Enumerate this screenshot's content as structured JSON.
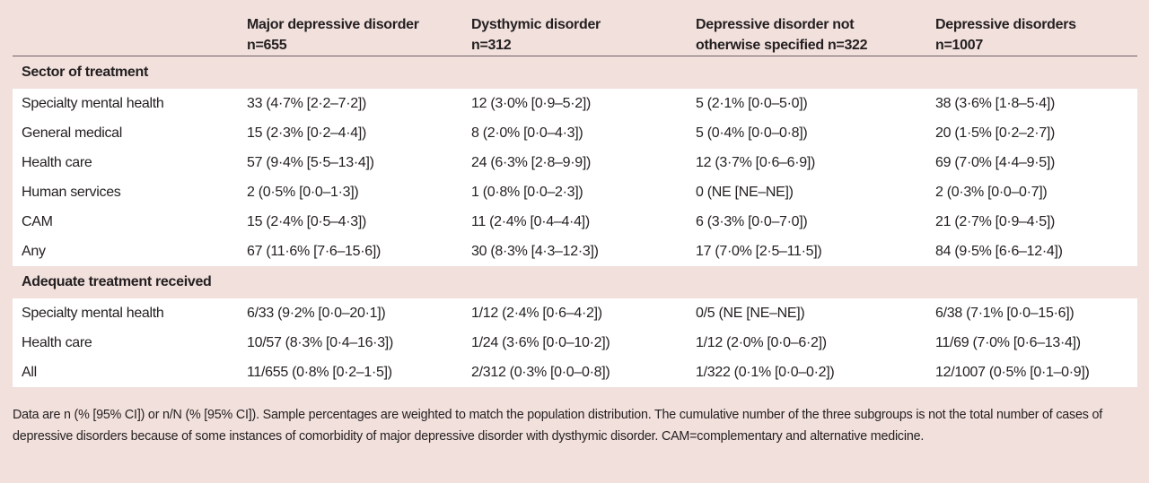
{
  "headers": [
    "",
    "Major depressive disorder n=655",
    "Dysthymic disorder n=312",
    "Depressive disorder not otherwise specified n=322",
    "Depressive disorders n=1007"
  ],
  "header_lines": [
    [
      "",
      ""
    ],
    [
      "Major depressive disorder",
      "n=655"
    ],
    [
      "Dysthymic disorder",
      "n=312"
    ],
    [
      "Depressive disorder not",
      "otherwise specified n=322"
    ],
    [
      "Depressive disorders",
      "n=1007"
    ]
  ],
  "sections": [
    {
      "title": "Sector of treatment",
      "rows": [
        [
          "Specialty mental health",
          "33 (4·7% [2·2–7·2])",
          "12 (3·0% [0·9–5·2])",
          "5 (2·1% [0·0–5·0])",
          "38 (3·6% [1·8–5·4])"
        ],
        [
          "General medical",
          "15 (2·3% [0·2–4·4])",
          "8 (2·0% [0·0–4·3])",
          "5 (0·4% [0·0–0·8])",
          "20 (1·5% [0·2–2·7])"
        ],
        [
          "Health care",
          "57 (9·4% [5·5–13·4])",
          "24 (6·3% [2·8–9·9])",
          "12 (3·7% [0·6–6·9])",
          "69 (7·0% [4·4–9·5])"
        ],
        [
          "Human services",
          "2 (0·5% [0·0–1·3])",
          "1 (0·8% [0·0–2·3])",
          "0 (NE [NE–NE])",
          "2 (0·3% [0·0–0·7])"
        ],
        [
          "CAM",
          "15 (2·4% [0·5–4·3])",
          "11 (2·4% [0·4–4·4])",
          "6 (3·3% [0·0–7·0])",
          "21 (2·7% [0·9–4·5])"
        ],
        [
          "Any",
          "67 (11·6% [7·6–15·6])",
          "30 (8·3% [4·3–12·3])",
          "17 (7·0% [2·5–11·5])",
          "84 (9·5% [6·6–12·4])"
        ]
      ]
    },
    {
      "title": "Adequate treatment received",
      "rows": [
        [
          "Specialty mental health",
          "6/33 (9·2% [0·0–20·1])",
          "1/12 (2·4% [0·6–4·2])",
          "0/5 (NE [NE–NE])",
          "6/38 (7·1% [0·0–15·6])"
        ],
        [
          "Health care",
          "10/57 (8·3% [0·4–16·3])",
          "1/24 (3·6% [0·0–10·2])",
          "1/12 (2·0% [0·0–6·2])",
          "11/69 (7·0% [0·6–13·4])"
        ],
        [
          "All",
          "11/655 (0·8% [0·2–1·5])",
          "2/312 (0·3% [0·0–0·8])",
          "1/322 (0·1% [0·0–0·2])",
          "12/1007 (0·5% [0·1–0·9])"
        ]
      ]
    }
  ],
  "footnote": "Data are n (% [95% CI]) or n/N (% [95% CI]). Sample percentages are weighted to match the population distribution. The cumulative number of the three subgroups is not the total number of cases of depressive disorders because of some instances of comorbidity of major depressive disorder with dysthymic disorder. CAM=complementary and alternative medicine.",
  "colors": {
    "background": "#f1e0dc",
    "row_background": "#ffffff",
    "text": "#231f20"
  }
}
